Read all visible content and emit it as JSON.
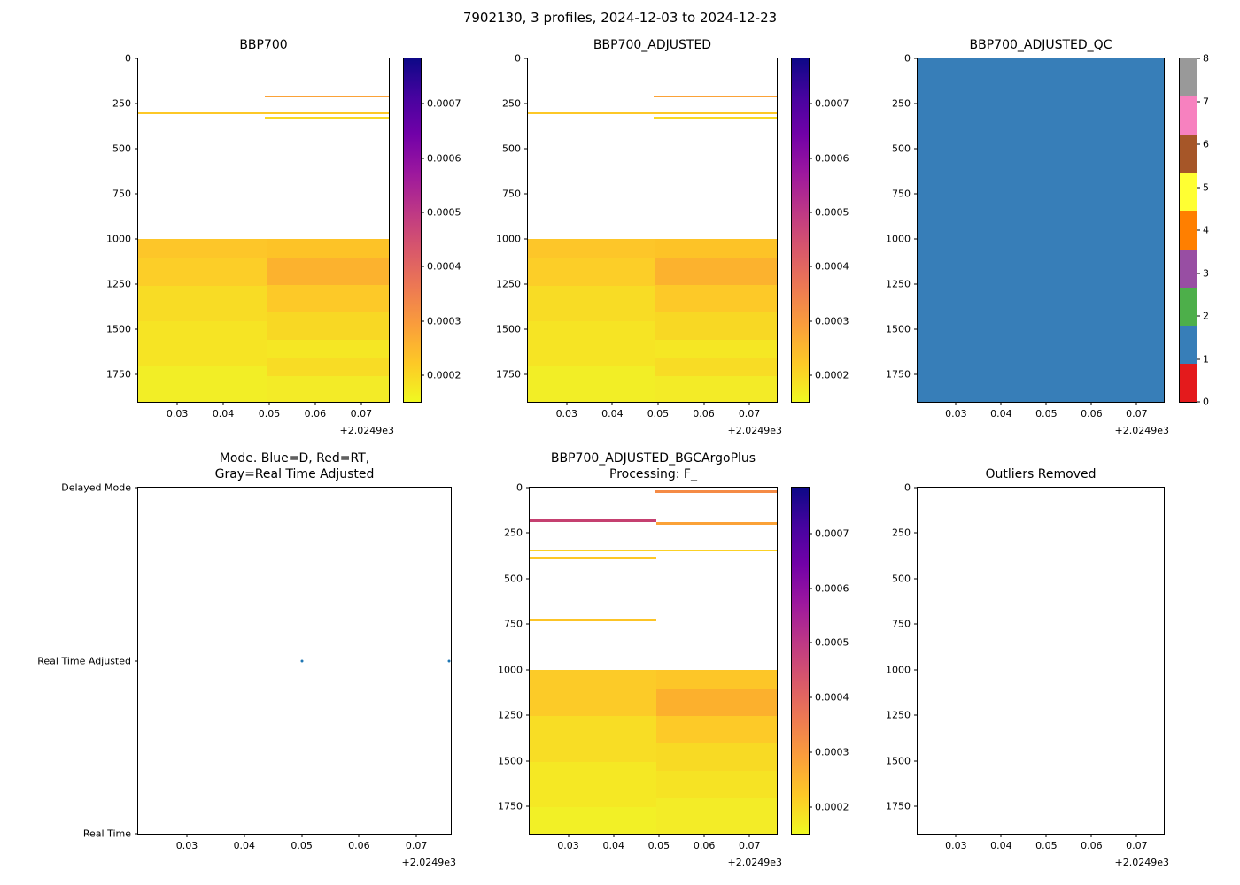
{
  "figure": {
    "title": "7902130, 3 profiles, 2024-12-03 to 2024-12-23"
  },
  "colorbars": {
    "continuous": {
      "range": [
        0.000151,
        0.000784
      ],
      "ticks": [
        0.0002,
        0.0003,
        0.0004,
        0.0005,
        0.0006,
        0.0007
      ],
      "tick_labels": [
        "0.0002",
        "0.0003",
        "0.0004",
        "0.0005",
        "0.0006",
        "0.0007"
      ],
      "gradient_top_to_bottom": [
        "#0d0887",
        "#46039f",
        "#7201a8",
        "#9c179e",
        "#bd3786",
        "#d8576b",
        "#ed7953",
        "#fa9e3b",
        "#fdc926",
        "#f0f921"
      ]
    },
    "qc": {
      "tick_labels": [
        "0",
        "1",
        "2",
        "3",
        "4",
        "5",
        "6",
        "7",
        "8"
      ],
      "colors_bottom_to_top": [
        "#e41a1c",
        "#377eb8",
        "#4daf4a",
        "#984ea3",
        "#ff7f00",
        "#ffff33",
        "#a65628",
        "#f781bf",
        "#999999"
      ]
    }
  },
  "chart_data": [
    {
      "id": "bbp700",
      "type": "heatmap",
      "title": "BBP700",
      "x_range": [
        0.0215,
        0.076
      ],
      "x_ticks": [
        0.03,
        0.04,
        0.05,
        0.06,
        0.07
      ],
      "x_tick_labels": [
        "0.03",
        "0.04",
        "0.05",
        "0.06",
        "0.07"
      ],
      "x_offset": "+2.0249e3",
      "y_axis": "depth",
      "depth_range": [
        0,
        1900
      ],
      "depth_ticks": [
        0,
        250,
        500,
        750,
        1000,
        1250,
        1500,
        1750
      ],
      "cells": [
        {
          "x0": 0.049,
          "x1": 0.076,
          "d0": 205,
          "d1": 217,
          "value": 0.00033,
          "color": "#fba238"
        },
        {
          "x0": 0.0215,
          "x1": 0.076,
          "d0": 300,
          "d1": 311,
          "value": 0.00026,
          "color": "#fdc827"
        },
        {
          "x0": 0.049,
          "x1": 0.076,
          "d0": 322,
          "d1": 333,
          "value": 0.00024,
          "color": "#f8d824"
        },
        {
          "x0": 0.0215,
          "x1": 0.0495,
          "d0": 1000,
          "d1": 1105,
          "value": 0.00027,
          "color": "#fdc629"
        },
        {
          "x0": 0.0215,
          "x1": 0.0495,
          "d0": 1105,
          "d1": 1260,
          "value": 0.00026,
          "color": "#fcce28"
        },
        {
          "x0": 0.0215,
          "x1": 0.0495,
          "d0": 1260,
          "d1": 1455,
          "value": 0.00023,
          "color": "#f8dc25"
        },
        {
          "x0": 0.0215,
          "x1": 0.0495,
          "d0": 1455,
          "d1": 1705,
          "value": 0.00022,
          "color": "#f6e424"
        },
        {
          "x0": 0.0215,
          "x1": 0.0495,
          "d0": 1705,
          "d1": 1900,
          "value": 0.0002,
          "color": "#f2ee26"
        },
        {
          "x0": 0.0495,
          "x1": 0.076,
          "d0": 1000,
          "d1": 1105,
          "value": 0.00028,
          "color": "#fdc327"
        },
        {
          "x0": 0.0495,
          "x1": 0.076,
          "d0": 1105,
          "d1": 1255,
          "value": 0.0003,
          "color": "#fcb22e"
        },
        {
          "x0": 0.0495,
          "x1": 0.076,
          "d0": 1255,
          "d1": 1405,
          "value": 0.00026,
          "color": "#fdc928"
        },
        {
          "x0": 0.0495,
          "x1": 0.076,
          "d0": 1405,
          "d1": 1555,
          "value": 0.00023,
          "color": "#f8d824"
        },
        {
          "x0": 0.0495,
          "x1": 0.076,
          "d0": 1555,
          "d1": 1660,
          "value": 0.00021,
          "color": "#f5e724"
        },
        {
          "x0": 0.0495,
          "x1": 0.076,
          "d0": 1660,
          "d1": 1760,
          "value": 0.00023,
          "color": "#f8dc25"
        },
        {
          "x0": 0.0495,
          "x1": 0.076,
          "d0": 1760,
          "d1": 1900,
          "value": 0.00021,
          "color": "#f3eb27"
        }
      ]
    },
    {
      "id": "bbp700_adjusted",
      "type": "heatmap",
      "title": "BBP700_ADJUSTED",
      "x_range": [
        0.0215,
        0.076
      ],
      "x_ticks": [
        0.03,
        0.04,
        0.05,
        0.06,
        0.07
      ],
      "x_tick_labels": [
        "0.03",
        "0.04",
        "0.05",
        "0.06",
        "0.07"
      ],
      "x_offset": "+2.0249e3",
      "y_axis": "depth",
      "depth_range": [
        0,
        1900
      ],
      "depth_ticks": [
        0,
        250,
        500,
        750,
        1000,
        1250,
        1500,
        1750
      ],
      "cells": [
        {
          "x0": 0.049,
          "x1": 0.076,
          "d0": 205,
          "d1": 217,
          "value": 0.00033,
          "color": "#fba238"
        },
        {
          "x0": 0.0215,
          "x1": 0.076,
          "d0": 300,
          "d1": 311,
          "value": 0.00026,
          "color": "#fdc827"
        },
        {
          "x0": 0.049,
          "x1": 0.076,
          "d0": 322,
          "d1": 333,
          "value": 0.00024,
          "color": "#f8d824"
        },
        {
          "x0": 0.0215,
          "x1": 0.0495,
          "d0": 1000,
          "d1": 1105,
          "value": 0.00027,
          "color": "#fdc629"
        },
        {
          "x0": 0.0215,
          "x1": 0.0495,
          "d0": 1105,
          "d1": 1260,
          "value": 0.00026,
          "color": "#fcce28"
        },
        {
          "x0": 0.0215,
          "x1": 0.0495,
          "d0": 1260,
          "d1": 1455,
          "value": 0.00023,
          "color": "#f8dc25"
        },
        {
          "x0": 0.0215,
          "x1": 0.0495,
          "d0": 1455,
          "d1": 1705,
          "value": 0.00022,
          "color": "#f6e424"
        },
        {
          "x0": 0.0215,
          "x1": 0.0495,
          "d0": 1705,
          "d1": 1900,
          "value": 0.0002,
          "color": "#f2ee26"
        },
        {
          "x0": 0.0495,
          "x1": 0.076,
          "d0": 1000,
          "d1": 1105,
          "value": 0.00028,
          "color": "#fdc327"
        },
        {
          "x0": 0.0495,
          "x1": 0.076,
          "d0": 1105,
          "d1": 1255,
          "value": 0.0003,
          "color": "#fcb22e"
        },
        {
          "x0": 0.0495,
          "x1": 0.076,
          "d0": 1255,
          "d1": 1405,
          "value": 0.00026,
          "color": "#fdc928"
        },
        {
          "x0": 0.0495,
          "x1": 0.076,
          "d0": 1405,
          "d1": 1555,
          "value": 0.00023,
          "color": "#f8d824"
        },
        {
          "x0": 0.0495,
          "x1": 0.076,
          "d0": 1555,
          "d1": 1660,
          "value": 0.00021,
          "color": "#f5e724"
        },
        {
          "x0": 0.0495,
          "x1": 0.076,
          "d0": 1660,
          "d1": 1760,
          "value": 0.00023,
          "color": "#f8dc25"
        },
        {
          "x0": 0.0495,
          "x1": 0.076,
          "d0": 1760,
          "d1": 1900,
          "value": 0.00021,
          "color": "#f3eb27"
        }
      ]
    },
    {
      "id": "bbp700_adjusted_qc",
      "type": "heatmap",
      "title": "BBP700_ADJUSTED_QC",
      "x_range": [
        0.0215,
        0.076
      ],
      "x_ticks": [
        0.03,
        0.04,
        0.05,
        0.06,
        0.07
      ],
      "x_tick_labels": [
        "0.03",
        "0.04",
        "0.05",
        "0.06",
        "0.07"
      ],
      "x_offset": "+2.0249e3",
      "y_axis": "depth",
      "depth_range": [
        0,
        1900
      ],
      "depth_ticks": [
        0,
        250,
        500,
        750,
        1000,
        1250,
        1500,
        1750
      ],
      "cells": [
        {
          "x0": 0.0215,
          "x1": 0.076,
          "d0": 0,
          "d1": 1900,
          "value": 1,
          "color": "#377eb8"
        }
      ]
    },
    {
      "id": "mode",
      "type": "scatter",
      "title": "Mode. Blue=D, Red=RT,\nGray=Real Time Adjusted",
      "x_range": [
        0.0215,
        0.076
      ],
      "x_ticks": [
        0.03,
        0.04,
        0.05,
        0.06,
        0.07
      ],
      "x_tick_labels": [
        "0.03",
        "0.04",
        "0.05",
        "0.06",
        "0.07"
      ],
      "x_offset": "+2.0249e3",
      "y_axis": "category",
      "categories": [
        "Delayed Mode",
        "Real Time Adjusted",
        "Real Time"
      ],
      "points": [
        {
          "x": 0.05,
          "category": "Real Time Adjusted",
          "color": "#1f77b4"
        },
        {
          "x": 0.0757,
          "category": "Real Time Adjusted",
          "color": "#1f77b4"
        }
      ]
    },
    {
      "id": "bbp700_adjusted_bgcargoplus",
      "type": "heatmap",
      "title": "BBP700_ADJUSTED_BGCArgoPlus\nProcessing: F_",
      "x_range": [
        0.0215,
        0.076
      ],
      "x_ticks": [
        0.03,
        0.04,
        0.05,
        0.06,
        0.07
      ],
      "x_tick_labels": [
        "0.03",
        "0.04",
        "0.05",
        "0.06",
        "0.07"
      ],
      "x_offset": "+2.0249e3",
      "y_axis": "depth",
      "depth_range": [
        0,
        1900
      ],
      "depth_ticks": [
        0,
        250,
        500,
        750,
        1000,
        1250,
        1500,
        1750
      ],
      "cells": [
        {
          "x0": 0.049,
          "x1": 0.076,
          "d0": 14,
          "d1": 28,
          "value": 0.00038,
          "color": "#f58b46"
        },
        {
          "x0": 0.0215,
          "x1": 0.0495,
          "d0": 176,
          "d1": 190,
          "value": 0.0005,
          "color": "#c54070"
        },
        {
          "x0": 0.0495,
          "x1": 0.076,
          "d0": 190,
          "d1": 202,
          "value": 0.00033,
          "color": "#fba238"
        },
        {
          "x0": 0.0215,
          "x1": 0.076,
          "d0": 338,
          "d1": 350,
          "value": 0.00025,
          "color": "#fbd125"
        },
        {
          "x0": 0.0215,
          "x1": 0.0495,
          "d0": 380,
          "d1": 394,
          "value": 0.00026,
          "color": "#fdc827"
        },
        {
          "x0": 0.0215,
          "x1": 0.0495,
          "d0": 718,
          "d1": 732,
          "value": 0.00026,
          "color": "#fcc426"
        },
        {
          "x0": 0.0215,
          "x1": 0.0495,
          "d0": 1000,
          "d1": 1255,
          "value": 0.00026,
          "color": "#fccb28"
        },
        {
          "x0": 0.0215,
          "x1": 0.0495,
          "d0": 1255,
          "d1": 1505,
          "value": 0.00023,
          "color": "#f8dd25"
        },
        {
          "x0": 0.0215,
          "x1": 0.0495,
          "d0": 1505,
          "d1": 1755,
          "value": 0.00021,
          "color": "#f5e824"
        },
        {
          "x0": 0.0215,
          "x1": 0.0495,
          "d0": 1755,
          "d1": 1900,
          "value": 0.0002,
          "color": "#f2f026"
        },
        {
          "x0": 0.0495,
          "x1": 0.076,
          "d0": 1000,
          "d1": 1105,
          "value": 0.00027,
          "color": "#fdc628"
        },
        {
          "x0": 0.0495,
          "x1": 0.076,
          "d0": 1105,
          "d1": 1255,
          "value": 0.00031,
          "color": "#fcb02d"
        },
        {
          "x0": 0.0495,
          "x1": 0.076,
          "d0": 1255,
          "d1": 1405,
          "value": 0.00026,
          "color": "#fdca28"
        },
        {
          "x0": 0.0495,
          "x1": 0.076,
          "d0": 1405,
          "d1": 1555,
          "value": 0.00023,
          "color": "#f8da24"
        },
        {
          "x0": 0.0495,
          "x1": 0.076,
          "d0": 1555,
          "d1": 1705,
          "value": 0.00022,
          "color": "#f6e324"
        },
        {
          "x0": 0.0495,
          "x1": 0.076,
          "d0": 1705,
          "d1": 1900,
          "value": 0.00021,
          "color": "#f3ec27"
        }
      ]
    },
    {
      "id": "outliers_removed",
      "type": "heatmap",
      "title": "Outliers Removed",
      "x_range": [
        0.0215,
        0.076
      ],
      "x_ticks": [
        0.03,
        0.04,
        0.05,
        0.06,
        0.07
      ],
      "x_tick_labels": [
        "0.03",
        "0.04",
        "0.05",
        "0.06",
        "0.07"
      ],
      "x_offset": "+2.0249e3",
      "y_axis": "depth",
      "depth_range": [
        0,
        1900
      ],
      "depth_ticks": [
        0,
        250,
        500,
        750,
        1000,
        1250,
        1500,
        1750
      ],
      "cells": []
    }
  ]
}
